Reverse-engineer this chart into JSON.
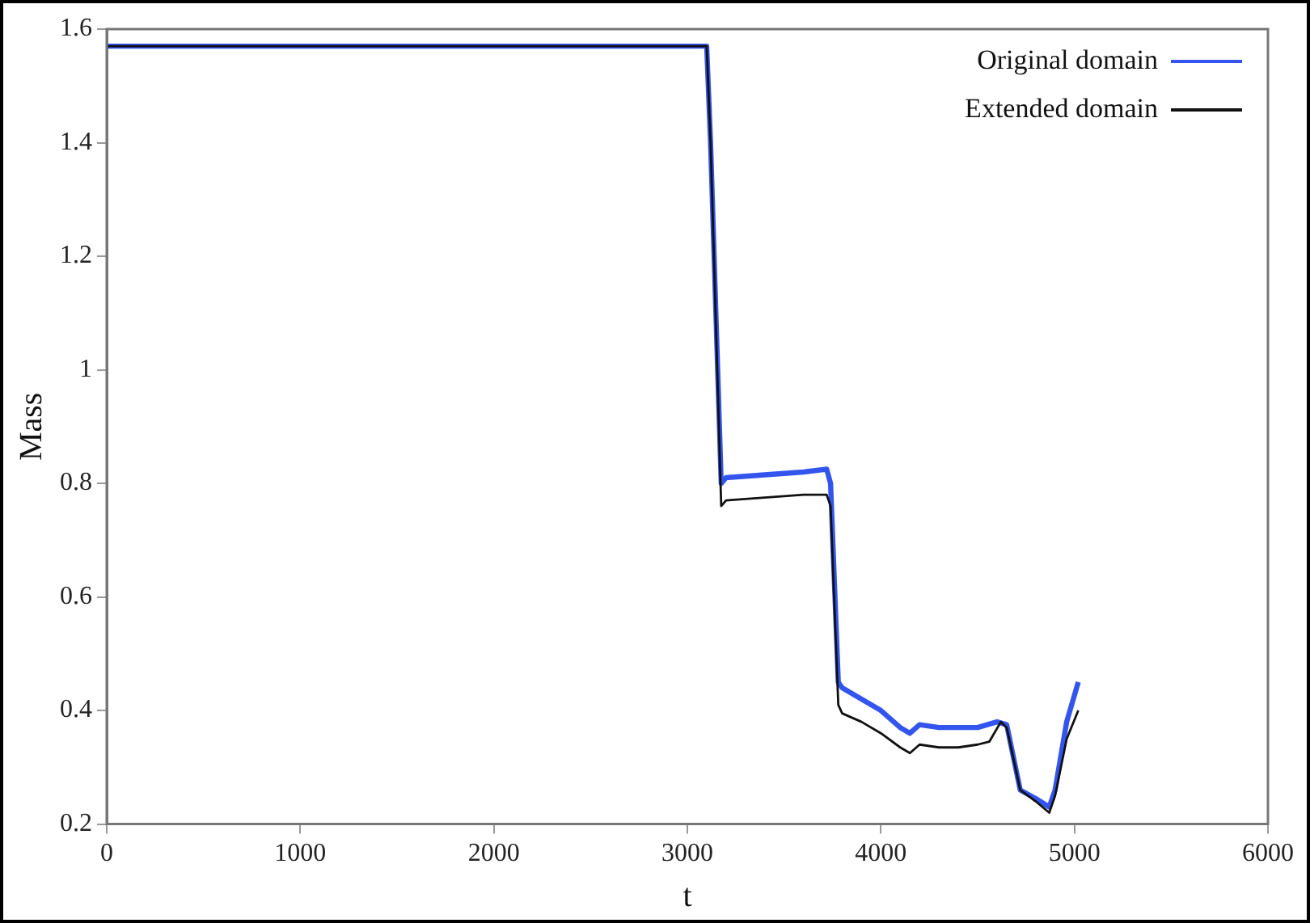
{
  "chart_data": {
    "type": "line",
    "xlabel": "t",
    "ylabel": "Mass",
    "xlim": [
      0,
      6000
    ],
    "xticks": [
      0,
      1000,
      2000,
      3000,
      4000,
      5000,
      6000
    ],
    "ylim": [
      0.2,
      1.6
    ],
    "yticks": [
      0.2,
      0.4,
      0.6,
      0.8,
      1,
      1.2,
      1.4,
      1.6
    ],
    "grid": false,
    "legend": "top right",
    "marker": "none",
    "line_style": "solid",
    "series": [
      {
        "name": "Original domain",
        "color": "#3355ee",
        "x": [
          0,
          3100,
          3120,
          3175,
          3200,
          3400,
          3600,
          3720,
          3740,
          3780,
          3800,
          3900,
          4000,
          4100,
          4150,
          4200,
          4300,
          4400,
          4500,
          4600,
          4650,
          4720,
          4800,
          4870,
          4900,
          4960,
          5020
        ],
        "values": [
          1.57,
          1.57,
          1.4,
          0.8,
          0.81,
          0.815,
          0.82,
          0.825,
          0.8,
          0.45,
          0.44,
          0.42,
          0.4,
          0.37,
          0.36,
          0.375,
          0.37,
          0.37,
          0.37,
          0.38,
          0.375,
          0.26,
          0.245,
          0.23,
          0.26,
          0.38,
          0.45
        ]
      },
      {
        "name": "Extended domain",
        "color": "#111111",
        "x": [
          0,
          3100,
          3120,
          3175,
          3200,
          3400,
          3600,
          3720,
          3740,
          3780,
          3800,
          3900,
          4000,
          4100,
          4150,
          4200,
          4300,
          4400,
          4500,
          4560,
          4620,
          4650,
          4720,
          4800,
          4870,
          4900,
          4960,
          5020
        ],
        "values": [
          1.57,
          1.57,
          1.4,
          0.76,
          0.77,
          0.775,
          0.78,
          0.78,
          0.76,
          0.41,
          0.395,
          0.38,
          0.36,
          0.335,
          0.325,
          0.34,
          0.335,
          0.335,
          0.34,
          0.345,
          0.38,
          0.37,
          0.26,
          0.24,
          0.22,
          0.25,
          0.35,
          0.4
        ]
      }
    ]
  }
}
